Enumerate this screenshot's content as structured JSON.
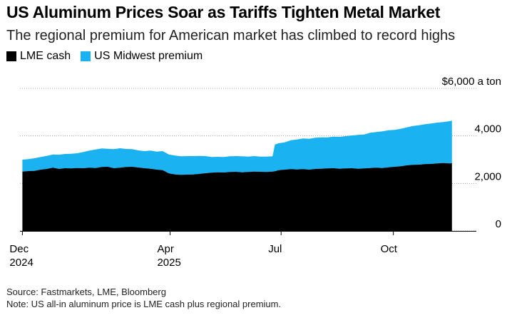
{
  "title": "US Aluminum Prices Soar as Tariffs Tighten Metal Market",
  "subtitle": "The regional premium for American market has climbed to record highs",
  "source": "Source: Fastmarkets, LME, Bloomberg",
  "note": "Note: US all-in aluminum price is LME cash plus regional premium.",
  "colors": {
    "lme": "#000000",
    "premium": "#1ab2f0",
    "axis": "#000000",
    "grid": "#000000"
  },
  "chart_data": {
    "type": "area",
    "stacked": true,
    "title": "US Aluminum Prices Soar as Tariffs Tighten Metal Market",
    "subtitle": "The regional premium for American market has climbed to record highs",
    "y_unit_label": "$6,000 a ton",
    "ylim": [
      0,
      6000
    ],
    "y_ticks": [
      {
        "value": 6000,
        "label": "$6,000 a ton"
      },
      {
        "value": 4000,
        "label": "4,000"
      },
      {
        "value": 2000,
        "label": "2,000"
      },
      {
        "value": 0,
        "label": "0"
      }
    ],
    "x_unit": "days since 2024-12-01",
    "xlim": [
      -2,
      372
    ],
    "x_ticks": [
      {
        "value": 0,
        "label": "Dec",
        "sublabel": "2024"
      },
      {
        "value": 121,
        "label": "Apr",
        "sublabel": "2025"
      },
      {
        "value": 212,
        "label": "Jul",
        "sublabel": ""
      },
      {
        "value": 304,
        "label": "Oct",
        "sublabel": ""
      }
    ],
    "legend": [
      "LME cash",
      "US Midwest premium"
    ],
    "legend_position": "top-left",
    "x": [
      0,
      5,
      10,
      15,
      20,
      25,
      30,
      35,
      40,
      45,
      50,
      55,
      60,
      65,
      70,
      75,
      80,
      85,
      90,
      95,
      100,
      105,
      110,
      115,
      120,
      125,
      130,
      135,
      140,
      145,
      150,
      155,
      160,
      165,
      170,
      175,
      180,
      185,
      190,
      195,
      200,
      205,
      207,
      210,
      215,
      220,
      225,
      230,
      235,
      240,
      245,
      250,
      255,
      260,
      265,
      270,
      275,
      280,
      285,
      290,
      295,
      300,
      305,
      310,
      315,
      320,
      325,
      330,
      335,
      340,
      345,
      350,
      352
    ],
    "series": [
      {
        "name": "LME cash",
        "values": [
          2500,
          2520,
          2530,
          2580,
          2610,
          2660,
          2610,
          2640,
          2630,
          2650,
          2640,
          2660,
          2650,
          2690,
          2700,
          2640,
          2660,
          2690,
          2700,
          2670,
          2640,
          2620,
          2580,
          2560,
          2420,
          2380,
          2360,
          2370,
          2380,
          2400,
          2430,
          2450,
          2470,
          2460,
          2480,
          2490,
          2470,
          2480,
          2500,
          2490,
          2480,
          2500,
          2510,
          2560,
          2580,
          2600,
          2590,
          2600,
          2580,
          2610,
          2620,
          2630,
          2640,
          2620,
          2630,
          2640,
          2620,
          2630,
          2650,
          2660,
          2650,
          2680,
          2700,
          2720,
          2760,
          2780,
          2790,
          2810,
          2820,
          2840,
          2860,
          2840,
          2850
        ]
      },
      {
        "name": "US Midwest premium",
        "values": [
          500,
          500,
          530,
          530,
          550,
          560,
          600,
          600,
          620,
          620,
          680,
          720,
          780,
          780,
          760,
          800,
          820,
          760,
          740,
          720,
          720,
          760,
          760,
          800,
          800,
          790,
          780,
          780,
          770,
          760,
          720,
          660,
          650,
          650,
          660,
          660,
          670,
          650,
          650,
          640,
          650,
          640,
          1130,
          1130,
          1150,
          1220,
          1260,
          1290,
          1300,
          1310,
          1320,
          1310,
          1330,
          1340,
          1360,
          1380,
          1420,
          1430,
          1480,
          1500,
          1540,
          1560,
          1550,
          1580,
          1600,
          1640,
          1660,
          1680,
          1700,
          1720,
          1720,
          1780,
          1790
        ]
      }
    ]
  }
}
